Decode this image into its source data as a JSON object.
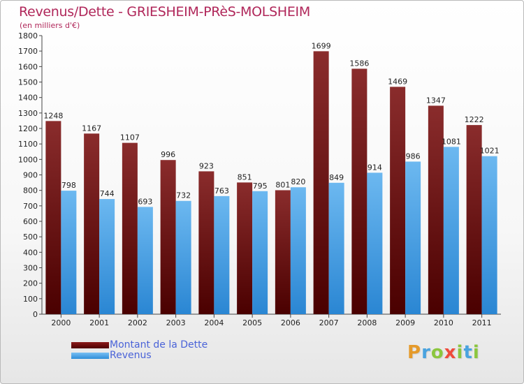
{
  "header": {
    "title": "Revenus/Dette - GRIESHEIM-PRèS-MOLSHEIM",
    "subtitle": "(en milliers d'€)"
  },
  "legend": {
    "dette": "Montant de la Dette",
    "revenus": "Revenus"
  },
  "logo": "Proxiti",
  "colors": {
    "dette_top": "#8a2c2c",
    "dette_bottom": "#4a0000",
    "revenus_top": "#6cb8f0",
    "revenus_bottom": "#2a86d3",
    "title": "#b0275a",
    "legend_text": "#4a63d8"
  },
  "chart_data": {
    "type": "bar",
    "title": "Revenus/Dette - GRIESHEIM-PRèS-MOLSHEIM",
    "subtitle": "(en milliers d'€)",
    "categories": [
      "2000",
      "2001",
      "2002",
      "2003",
      "2004",
      "2005",
      "2006",
      "2007",
      "2008",
      "2009",
      "2010",
      "2011"
    ],
    "series": [
      {
        "name": "Montant de la Dette",
        "values": [
          1248,
          1167,
          1107,
          996,
          923,
          851,
          801,
          1699,
          1586,
          1469,
          1347,
          1222
        ]
      },
      {
        "name": "Revenus",
        "values": [
          798,
          744,
          693,
          732,
          763,
          795,
          820,
          849,
          914,
          986,
          1081,
          1021
        ]
      }
    ],
    "yticks": [
      0,
      100,
      200,
      300,
      400,
      500,
      600,
      700,
      800,
      900,
      1000,
      1100,
      1200,
      1300,
      1400,
      1500,
      1600,
      1700,
      1800
    ],
    "ylim": [
      0,
      1800
    ],
    "xlabel": "",
    "ylabel": "",
    "grid": false,
    "legend_position": "bottom-left"
  }
}
